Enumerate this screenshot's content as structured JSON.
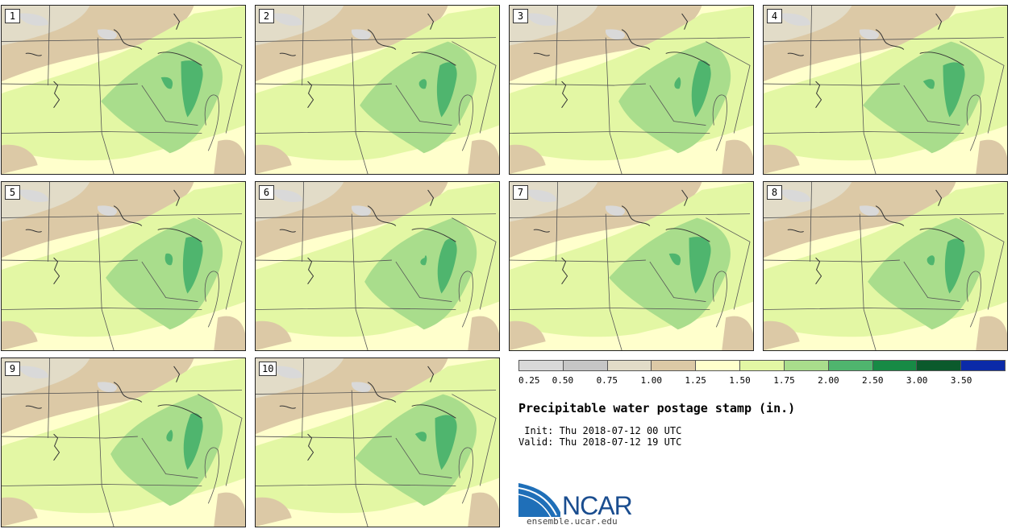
{
  "stamps": [
    {
      "label": "1"
    },
    {
      "label": "2"
    },
    {
      "label": "3"
    },
    {
      "label": "4"
    },
    {
      "label": "5"
    },
    {
      "label": "6"
    },
    {
      "label": "7"
    },
    {
      "label": "8"
    },
    {
      "label": "9"
    },
    {
      "label": "10"
    }
  ],
  "colorbar": {
    "colors": [
      "#d9d9d9",
      "#c6c6c6",
      "#e2dcc8",
      "#dcc9a6",
      "#ffffcc",
      "#e3f7a4",
      "#a9dd8c",
      "#4fb56e",
      "#178a45",
      "#0b5a2c",
      "#0b2aa8"
    ],
    "ticks": [
      "0.25",
      "0.50",
      "0.75",
      "1.00",
      "1.25",
      "1.50",
      "1.75",
      "2.00",
      "2.50",
      "3.00",
      "3.50"
    ]
  },
  "title": "Precipitable water postage stamp (in.)",
  "init": " Init: Thu 2018-07-12 00 UTC",
  "valid": "Valid: Thu 2018-07-12 19 UTC",
  "logo": {
    "text": "NCAR",
    "url": "ensemble.ucar.edu"
  }
}
